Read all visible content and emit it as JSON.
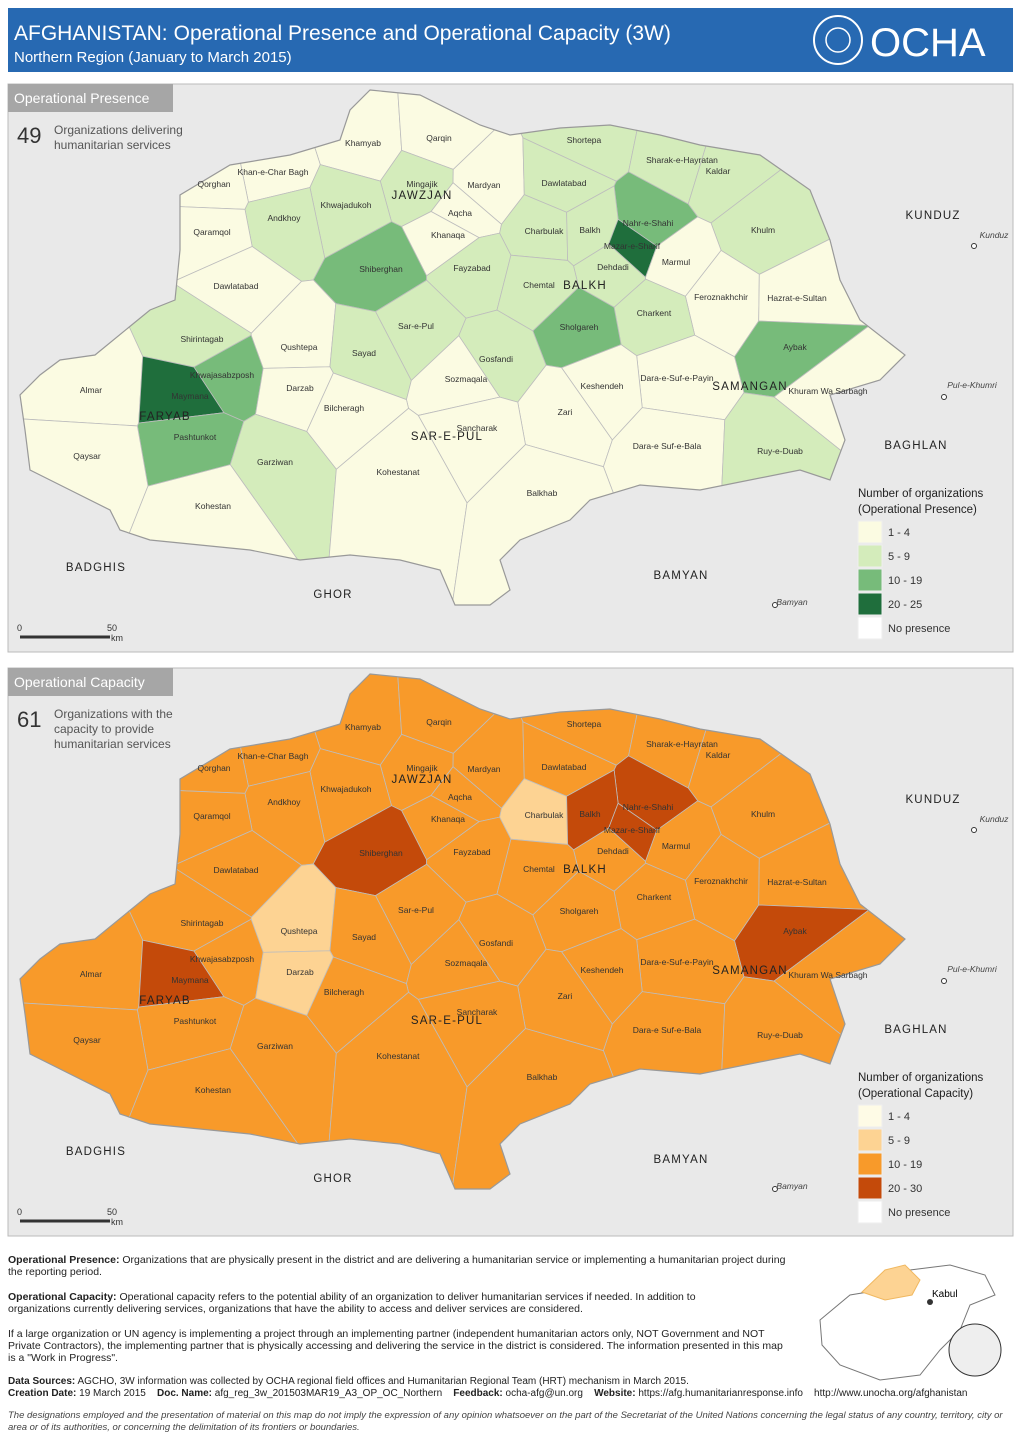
{
  "header": {
    "title_country": "AFGHANISTAN:",
    "title_rest": "Operational Presence and Operational Capacity (3W)",
    "subtitle": "Northern Region (January to March 2015)",
    "logo": "OCHA"
  },
  "district_names": [
    "Khamyab",
    "Qarqin",
    "Shortepa",
    "Khan-e-Char Bagh",
    "Sharak-e-Hayratan",
    "Kaldar",
    "Qorghan",
    "Mingajik",
    "Mardyan",
    "Dawlatabad",
    "Khwajadukoh",
    "Andkhoy",
    "Aqcha",
    "Nahr-e-Shahi",
    "Khulm",
    "Qaramqol",
    "Khanaqa",
    "Charbulak",
    "Balkh",
    "Mazar-e-Sharif",
    "Shiberghan",
    "Fayzabad",
    "Dehdadi",
    "Marmul",
    "Dawlatabad",
    "Chemtal",
    "Feroznakhchir",
    "Hazrat-e-Sultan",
    "Charkent",
    "Sholgareh",
    "Sar-e-Pul",
    "Shirintagab",
    "Qushtepa",
    "Sayad",
    "Aybak",
    "Gosfandi",
    "Khwajasabzposh",
    "Sozmaqala",
    "Dara-e-Suf-e-Payin",
    "Almar",
    "Maymana",
    "Darzab",
    "Keshendeh",
    "Khuram Wa Sarbagh",
    "Bilcheragh",
    "Zari",
    "Sancharak",
    "Pashtunkot",
    "Dara-e Suf-e-Bala",
    "Qaysar",
    "Ruy-e-Duab",
    "Garziwan",
    "Kohestanat",
    "Balkhab",
    "Kohestan"
  ],
  "provinces": [
    "JAWZJAN",
    "BALKH",
    "FARYAB",
    "SAR-E-PUL",
    "SAMANGAN",
    "KUNDUZ",
    "BAGHLAN",
    "BADGHIS",
    "GHOR",
    "BAMYAN"
  ],
  "places": [
    "Kunduz",
    "Pul-e-Khumri",
    "Bamyan"
  ],
  "scale": [
    "0",
    "50",
    "km"
  ],
  "maps": [
    {
      "panel_title": "Operational Presence",
      "count": 49,
      "count_text": [
        "Organizations delivering",
        "humanitarian services"
      ],
      "legend_title": [
        "Number of organizations",
        "(Operational Presence)"
      ],
      "legend": [
        {
          "label": "1 - 4",
          "color": "#fbfbe2"
        },
        {
          "label": "5 - 9",
          "color": "#d4ecbb"
        },
        {
          "label": "10 - 19",
          "color": "#77bb7a"
        },
        {
          "label": "20 - 25",
          "color": "#1f6e3c"
        },
        {
          "label": "No presence",
          "color": "#ffffff"
        }
      ],
      "district_colors": [
        "#fbfbe2",
        "#fbfbe2",
        "#d4ecbb",
        "#fbfbe2",
        "#d4ecbb",
        "#d4ecbb",
        "#fbfbe2",
        "#d4ecbb",
        "#fbfbe2",
        "#d4ecbb",
        "#d4ecbb",
        "#d4ecbb",
        "#fbfbe2",
        "#77bb7a",
        "#d4ecbb",
        "#fbfbe2",
        "#fbfbe2",
        "#d4ecbb",
        "#d4ecbb",
        "#1f6e3c",
        "#77bb7a",
        "#d4ecbb",
        "#d4ecbb",
        "#fbfbe2",
        "#fbfbe2",
        "#d4ecbb",
        "#fbfbe2",
        "#fbfbe2",
        "#d4ecbb",
        "#77bb7a",
        "#d4ecbb",
        "#d4ecbb",
        "#fbfbe2",
        "#d4ecbb",
        "#77bb7a",
        "#d4ecbb",
        "#77bb7a",
        "#fbfbe2",
        "#fbfbe2",
        "#fbfbe2",
        "#1f6e3c",
        "#fbfbe2",
        "#fbfbe2",
        "#fbfbe2",
        "#fbfbe2",
        "#fbfbe2",
        "#fbfbe2",
        "#77bb7a",
        "#fbfbe2",
        "#fbfbe2",
        "#d4ecbb",
        "#d4ecbb",
        "#fbfbe2",
        "#fbfbe2",
        "#fbfbe2"
      ]
    },
    {
      "panel_title": "Operational Capacity",
      "count": 61,
      "count_text": [
        "Organizations with the",
        "capacity to provide",
        "humanitarian services"
      ],
      "legend_title": [
        "Number of organizations",
        "(Operational Capacity)"
      ],
      "legend": [
        {
          "label": "1 - 4",
          "color": "#fefbe6"
        },
        {
          "label": "5 - 9",
          "color": "#fdd393"
        },
        {
          "label": "10 - 19",
          "color": "#f89a2a"
        },
        {
          "label": "20 - 30",
          "color": "#c44a0a"
        },
        {
          "label": "No presence",
          "color": "#ffffff"
        }
      ],
      "district_colors": [
        "#f89a2a",
        "#f89a2a",
        "#f89a2a",
        "#f89a2a",
        "#f89a2a",
        "#f89a2a",
        "#f89a2a",
        "#f89a2a",
        "#f89a2a",
        "#f89a2a",
        "#f89a2a",
        "#f89a2a",
        "#f89a2a",
        "#c44a0a",
        "#f89a2a",
        "#f89a2a",
        "#f89a2a",
        "#fdd393",
        "#c44a0a",
        "#c44a0a",
        "#c44a0a",
        "#f89a2a",
        "#f89a2a",
        "#f89a2a",
        "#f89a2a",
        "#f89a2a",
        "#f89a2a",
        "#f89a2a",
        "#f89a2a",
        "#f89a2a",
        "#f89a2a",
        "#f89a2a",
        "#fdd393",
        "#f89a2a",
        "#c44a0a",
        "#f89a2a",
        "#f89a2a",
        "#f89a2a",
        "#f89a2a",
        "#f89a2a",
        "#c44a0a",
        "#fdd393",
        "#f89a2a",
        "#f89a2a",
        "#f89a2a",
        "#f89a2a",
        "#f89a2a",
        "#f89a2a",
        "#f89a2a",
        "#f89a2a",
        "#f89a2a",
        "#f89a2a",
        "#f89a2a",
        "#f89a2a",
        "#f89a2a"
      ]
    }
  ],
  "notes": {
    "presence_lead": "Operational Presence:",
    "presence_text": "Organizations that are physically present in the district and are delivering a humanitarian service or implementing a humanitarian project during the reporting period.",
    "capacity_lead": "Operational Capacity:",
    "capacity_text": "Operational capacity refers to the potential ability of an organization to deliver humanitarian services if needed. In addition to organizations currently delivering services, organizations that have the ability to access and deliver services are considered.",
    "partner_text": "If a large organization or UN agency is implementing a project through an implementing partner (independent humanitarian actors only, NOT Government and NOT Private Contractors), the implementing partner that is physically accessing and delivering the service in the district is considered. The information presented in this map is a \"Work in Progress\".",
    "inset_label": "Kabul"
  },
  "footer": {
    "sources_lead": "Data Sources:",
    "sources_text": "AGCHO, 3W information was collected by OCHA regional field offices and Humanitarian Regional Team (HRT) mechanism in March 2015.",
    "date_lead": "Creation Date:",
    "date": "19 March 2015",
    "doc_lead": "Doc. Name:",
    "doc": "afg_reg_3w_201503MAR19_A3_OP_OC_Northern",
    "feedback_lead": "Feedback:",
    "feedback": "ocha-afg@un.org",
    "website_lead": "Website:",
    "website": "https://afg.humanitarianresponse.info",
    "website2": "http://www.unocha.org/afghanistan",
    "disclaimer": "The designations employed and the presentation of material on this map do not imply the expression of any opinion whatsoever on the part of the Secretariat of the United Nations concerning the legal status of any country, territory, city or area or of its authorities, or concerning the delimitation of its frontiers or boundaries."
  }
}
